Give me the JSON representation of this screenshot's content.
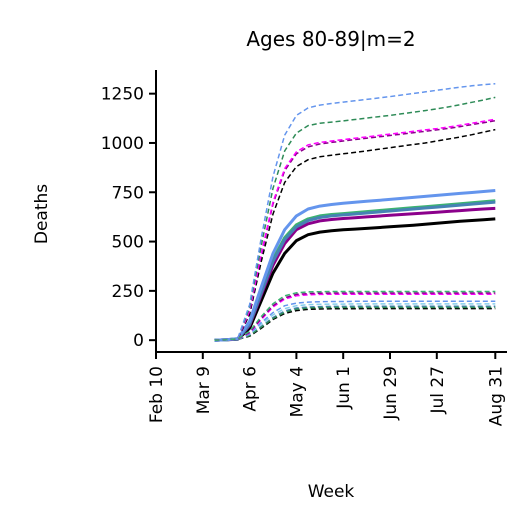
{
  "chart_data": {
    "type": "line",
    "title": "Ages 80-89|m=2",
    "xlabel": "Week",
    "ylabel": "Deaths",
    "x_ticks": [
      "Feb 10",
      "Mar 9",
      "Apr 6",
      "May 4",
      "Jun 1",
      "Jun 29",
      "Jul 27",
      "Aug 31"
    ],
    "x_tick_weeks": [
      0,
      4,
      8,
      12,
      16,
      20,
      24,
      29
    ],
    "xlim": [
      0,
      30
    ],
    "y_ticks": [
      0,
      250,
      500,
      750,
      1000,
      1250
    ],
    "ylim": [
      -60,
      1370
    ],
    "grid": false,
    "legend": "none",
    "x_weeks": [
      5,
      6,
      7,
      8,
      9,
      10,
      11,
      12,
      13,
      14,
      15,
      16,
      17,
      18,
      19,
      20,
      21,
      22,
      23,
      24,
      25,
      26,
      27,
      28,
      29
    ],
    "series": [
      {
        "color": "#000000",
        "style": "solid",
        "values": [
          0,
          2,
          5,
          60,
          200,
          340,
          440,
          505,
          535,
          548,
          555,
          560,
          563,
          567,
          571,
          575,
          579,
          583,
          588,
          593,
          598,
          603,
          607,
          611,
          615
        ]
      },
      {
        "color": "#8b008b",
        "style": "solid",
        "values": [
          0,
          2,
          6,
          75,
          230,
          380,
          490,
          560,
          590,
          605,
          612,
          617,
          621,
          625,
          629,
          633,
          637,
          641,
          645,
          649,
          653,
          657,
          661,
          665,
          668
        ]
      },
      {
        "color": "#3cb371",
        "style": "solid",
        "values": [
          0,
          2,
          7,
          85,
          250,
          410,
          520,
          585,
          615,
          630,
          637,
          642,
          647,
          652,
          657,
          662,
          667,
          672,
          677,
          682,
          687,
          692,
          697,
          702,
          707
        ]
      },
      {
        "color": "#4682b4",
        "style": "solid",
        "values": [
          0,
          2,
          6,
          80,
          240,
          400,
          510,
          575,
          607,
          622,
          630,
          635,
          640,
          645,
          650,
          655,
          660,
          665,
          670,
          675,
          680,
          685,
          690,
          695,
          700
        ]
      },
      {
        "color": "#6495ed",
        "style": "solid",
        "values": [
          0,
          2,
          8,
          95,
          270,
          440,
          560,
          630,
          665,
          680,
          688,
          694,
          699,
          704,
          709,
          714,
          719,
          724,
          729,
          734,
          739,
          744,
          749,
          754,
          759
        ]
      },
      {
        "color": "#000000",
        "style": "dashed",
        "values": [
          0,
          2,
          8,
          130,
          400,
          640,
          800,
          880,
          915,
          930,
          938,
          945,
          952,
          960,
          968,
          976,
          984,
          992,
          1000,
          1010,
          1020,
          1030,
          1042,
          1055,
          1068
        ]
      },
      {
        "color": "#8b008b",
        "style": "dashed",
        "values": [
          0,
          2,
          9,
          145,
          430,
          690,
          860,
          945,
          980,
          995,
          1003,
          1010,
          1017,
          1024,
          1031,
          1038,
          1045,
          1052,
          1059,
          1066,
          1074,
          1083,
          1093,
          1103,
          1113
        ]
      },
      {
        "color": "#ff00ff",
        "style": "dashed",
        "values": [
          0,
          2,
          9,
          148,
          440,
          700,
          870,
          955,
          990,
          1003,
          1010,
          1017,
          1024,
          1031,
          1038,
          1045,
          1052,
          1059,
          1066,
          1073,
          1081,
          1090,
          1100,
          1110,
          1120
        ]
      },
      {
        "color": "#2e8b57",
        "style": "dashed",
        "values": [
          0,
          2,
          10,
          165,
          480,
          770,
          960,
          1050,
          1088,
          1100,
          1106,
          1112,
          1119,
          1126,
          1133,
          1140,
          1148,
          1156,
          1164,
          1173,
          1183,
          1194,
          1206,
          1218,
          1231
        ]
      },
      {
        "color": "#6495ed",
        "style": "dashed",
        "values": [
          0,
          2,
          11,
          180,
          520,
          830,
          1040,
          1140,
          1178,
          1192,
          1200,
          1207,
          1214,
          1221,
          1228,
          1235,
          1243,
          1251,
          1259,
          1267,
          1275,
          1283,
          1290,
          1296,
          1300
        ]
      },
      {
        "color": "#000000",
        "style": "dashed",
        "values": [
          0,
          2,
          4,
          20,
          60,
          105,
          135,
          150,
          156,
          158,
          159,
          159,
          159,
          160,
          160,
          160,
          160,
          160,
          160,
          160,
          160,
          160,
          160,
          160,
          160
        ]
      },
      {
        "color": "#4682b4",
        "style": "dashed",
        "values": [
          0,
          2,
          4,
          25,
          70,
          115,
          148,
          163,
          168,
          170,
          171,
          171,
          172,
          172,
          172,
          172,
          172,
          172,
          172,
          172,
          172,
          172,
          172,
          172,
          172
        ]
      },
      {
        "color": "#2e8b57",
        "style": "dashed",
        "values": [
          0,
          2,
          4,
          23,
          66,
          110,
          142,
          157,
          163,
          165,
          166,
          166,
          166,
          166,
          166,
          166,
          166,
          166,
          166,
          166,
          166,
          166,
          166,
          166,
          166
        ]
      },
      {
        "color": "#87ceeb",
        "style": "dashed",
        "values": [
          0,
          2,
          5,
          30,
          82,
          128,
          160,
          175,
          180,
          182,
          183,
          183,
          184,
          184,
          184,
          184,
          184,
          184,
          184,
          184,
          184,
          184,
          184,
          184,
          184
        ]
      },
      {
        "color": "#6495ed",
        "style": "dashed",
        "values": [
          0,
          2,
          5,
          32,
          90,
          140,
          175,
          188,
          193,
          195,
          196,
          196,
          197,
          197,
          197,
          197,
          197,
          197,
          197,
          197,
          197,
          197,
          197,
          197,
          197
        ]
      },
      {
        "color": "#ff00ff",
        "style": "dashed",
        "values": [
          0,
          2,
          6,
          38,
          105,
          168,
          208,
          225,
          230,
          232,
          233,
          233,
          233,
          233,
          233,
          233,
          233,
          233,
          233,
          233,
          233,
          233,
          233,
          233,
          233
        ]
      },
      {
        "color": "#8b008b",
        "style": "dashed",
        "values": [
          0,
          2,
          6,
          40,
          110,
          175,
          215,
          232,
          236,
          238,
          239,
          239,
          239,
          239,
          239,
          239,
          239,
          239,
          239,
          239,
          239,
          239,
          239,
          239,
          239
        ]
      },
      {
        "color": "#3cb371",
        "style": "dashed",
        "values": [
          0,
          2,
          7,
          45,
          120,
          185,
          225,
          240,
          245,
          246,
          247,
          247,
          247,
          247,
          247,
          247,
          247,
          247,
          247,
          247,
          247,
          247,
          247,
          247,
          247
        ]
      }
    ]
  }
}
